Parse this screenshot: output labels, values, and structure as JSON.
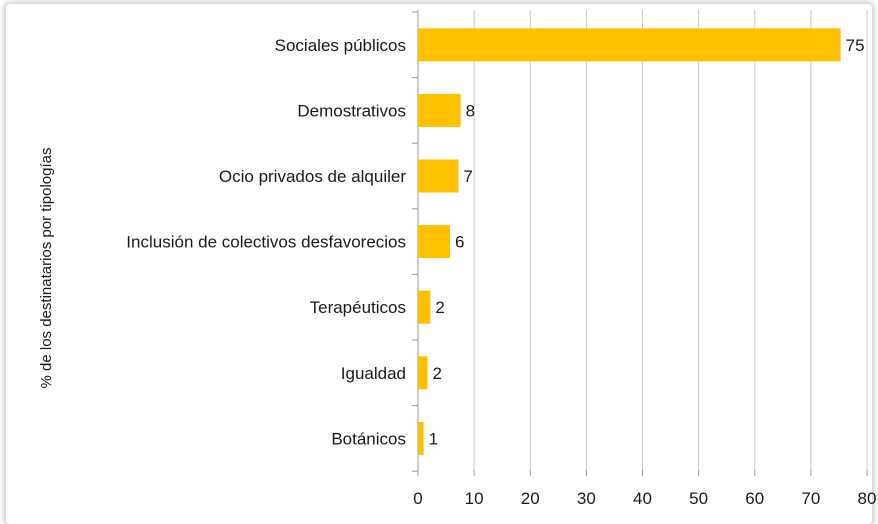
{
  "chart_data": {
    "type": "bar",
    "orientation": "horizontal",
    "categories": [
      "Sociales públicos",
      "Demostrativos",
      "Ocio privados de alquiler",
      "Inclusión de colectivos desfavorecios",
      "Terapéuticos",
      "Igualdad",
      "Botánicos"
    ],
    "values": [
      75,
      8,
      7,
      6,
      2,
      2,
      1
    ],
    "bar_values": [
      75.3,
      7.6,
      7.2,
      5.7,
      2.2,
      1.7,
      1.0
    ],
    "data_labels": [
      "75",
      "8",
      "7",
      "6",
      "2",
      "2",
      "1"
    ],
    "title": "",
    "xlabel": "",
    "ylabel": "% de los destinatarios por tipologías",
    "xlim": [
      0,
      80
    ],
    "x_ticks": [
      0,
      10,
      20,
      30,
      40,
      50,
      60,
      70,
      80
    ],
    "grid": "vertical",
    "legend": "none",
    "bar_color": "#FFC000",
    "grid_color": "#c8c8c8"
  }
}
